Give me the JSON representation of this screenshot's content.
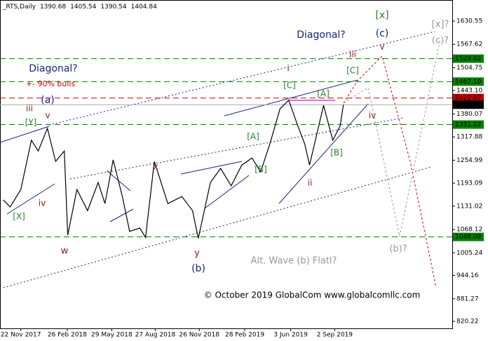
{
  "chart_data": {
    "type": "line",
    "title": "_RTS,Daily",
    "ohlc": [
      1390.68,
      1405.54,
      1390.54,
      1404.84
    ],
    "copyright": "© October 2019 GlobalCom www.globalcomllc.com",
    "x": [
      "2017-10-17",
      "2017-10-31",
      "2017-11-22",
      "2017-12-14",
      "2017-12-28",
      "2018-01-16",
      "2018-02-02",
      "2018-02-20",
      "2018-02-27",
      "2018-03-18",
      "2018-04-09",
      "2018-05-01",
      "2018-05-15",
      "2018-06-01",
      "2018-06-20",
      "2018-07-05",
      "2018-07-26",
      "2018-08-07",
      "2018-08-25",
      "2018-09-22",
      "2018-10-21",
      "2018-11-12",
      "2018-11-24",
      "2018-12-19",
      "2019-01-09",
      "2019-01-31",
      "2019-02-22",
      "2019-03-15",
      "2019-04-02",
      "2019-04-21",
      "2019-05-12",
      "2019-05-30",
      "2019-06-18",
      "2019-07-02",
      "2019-07-12",
      "2019-07-24",
      "2019-08-10",
      "2019-08-29",
      "2019-09-13",
      "2019-09-20"
    ],
    "series": [
      {
        "name": "RTS",
        "color": "#000000",
        "values": [
          1148,
          1129,
          1176,
          1309,
          1280,
          1341,
          1252,
          1280,
          1053,
          1176,
          1119,
          1195,
          1138,
          1256,
          1157,
          1063,
          1072,
          1047,
          1252,
          1138,
          1157,
          1119,
          1044,
          1195,
          1233,
          1186,
          1242,
          1261,
          1224,
          1299,
          1394,
          1417,
          1347,
          1299,
          1242,
          1309,
          1403,
          1309,
          1347,
          1404.84
        ]
      }
    ],
    "xlim": [
      "2017-10-10",
      "2020-05-02"
    ],
    "xticks": [
      {
        "value": "2017-11-22",
        "label": "22 Nov 2017"
      },
      {
        "value": "2018-02-26",
        "label": "26 Feb 2018"
      },
      {
        "value": "2018-05-29",
        "label": "29 May 2018"
      },
      {
        "value": "2018-08-27",
        "label": "27 Aug 2018"
      },
      {
        "value": "2018-11-26",
        "label": "26 Nov 2018"
      },
      {
        "value": "2019-02-28",
        "label": "28 Feb 2019"
      },
      {
        "value": "2019-06-03",
        "label": "3 Jun 2019"
      },
      {
        "value": "2019-09-02",
        "label": "2 Sep 2019"
      }
    ],
    "ylim": [
      801.4,
      1687.3
    ],
    "yticks": [
      1630.55,
      1567.62,
      1504.75,
      {
        "value": 1443.1,
        "label": "1443.10"
      },
      1380.07,
      1317.88,
      1254.99,
      1193.09,
      1131.02,
      1068.12,
      1005.24,
      944.16,
      881.27,
      820.22
    ],
    "levels": [
      {
        "value": 1529.02,
        "color": "#008000"
      },
      {
        "value": 1467.1,
        "label": "1467.10",
        "color": "#008000"
      },
      {
        "value": 1422.87,
        "color": "#c00000"
      },
      {
        "value": 1404.84,
        "color": "#000000"
      },
      {
        "value": 1351.22,
        "color": "#008000"
      },
      {
        "value": 1048.09,
        "color": "#008000"
      }
    ],
    "annotations": [
      {
        "text": "[x]",
        "color": "#2e7d32"
      },
      {
        "text": "[x]?",
        "color": "#999999"
      },
      {
        "text": "(c)",
        "color": "#1a237e"
      },
      {
        "text": "(c)?",
        "color": "#999999"
      },
      {
        "text": "Diagonal?",
        "color": "#1a237e"
      },
      {
        "text": "iii",
        "color": "#8b1a1a"
      },
      {
        "text": "v",
        "color": "#8b1a1a"
      },
      {
        "text": "i",
        "color": "#8b1a1a"
      },
      {
        "text": "[C]",
        "color": "#2e7d32"
      },
      {
        "text": "Diagonal?",
        "color": "#1a237e"
      },
      {
        "text": "+- 90% bulls",
        "color": "#d00000"
      },
      {
        "text": "(a)",
        "color": "#1a237e"
      },
      {
        "text": "[C]",
        "color": "#2e7d32"
      },
      {
        "text": "[A]",
        "color": "#2e7d32"
      },
      {
        "text": "iii",
        "color": "#8b1a1a"
      },
      {
        "text": "v",
        "color": "#8b1a1a"
      },
      {
        "text": "[Y]",
        "color": "#2e7d32"
      },
      {
        "text": "iv",
        "color": "#8b1a1a"
      },
      {
        "text": "[A]",
        "color": "#2e7d32"
      },
      {
        "text": "[B]",
        "color": "#2e7d32"
      },
      {
        "text": "x",
        "color": "#8b1a1a"
      },
      {
        "text": "ii",
        "color": "#8b1a1a"
      },
      {
        "text": "[B]",
        "color": "#2e7d32"
      },
      {
        "text": "iv",
        "color": "#8b1a1a"
      },
      {
        "text": "[X]",
        "color": "#2e7d32"
      },
      {
        "text": "w",
        "color": "#8b1a1a"
      },
      {
        "text": "y",
        "color": "#8b1a1a"
      },
      {
        "text": "(b)",
        "color": "#1a237e"
      },
      {
        "text": "Alt. Wave (b) Flatl?",
        "color": "#999999"
      },
      {
        "text": "(b)?",
        "color": "#999999"
      }
    ]
  }
}
